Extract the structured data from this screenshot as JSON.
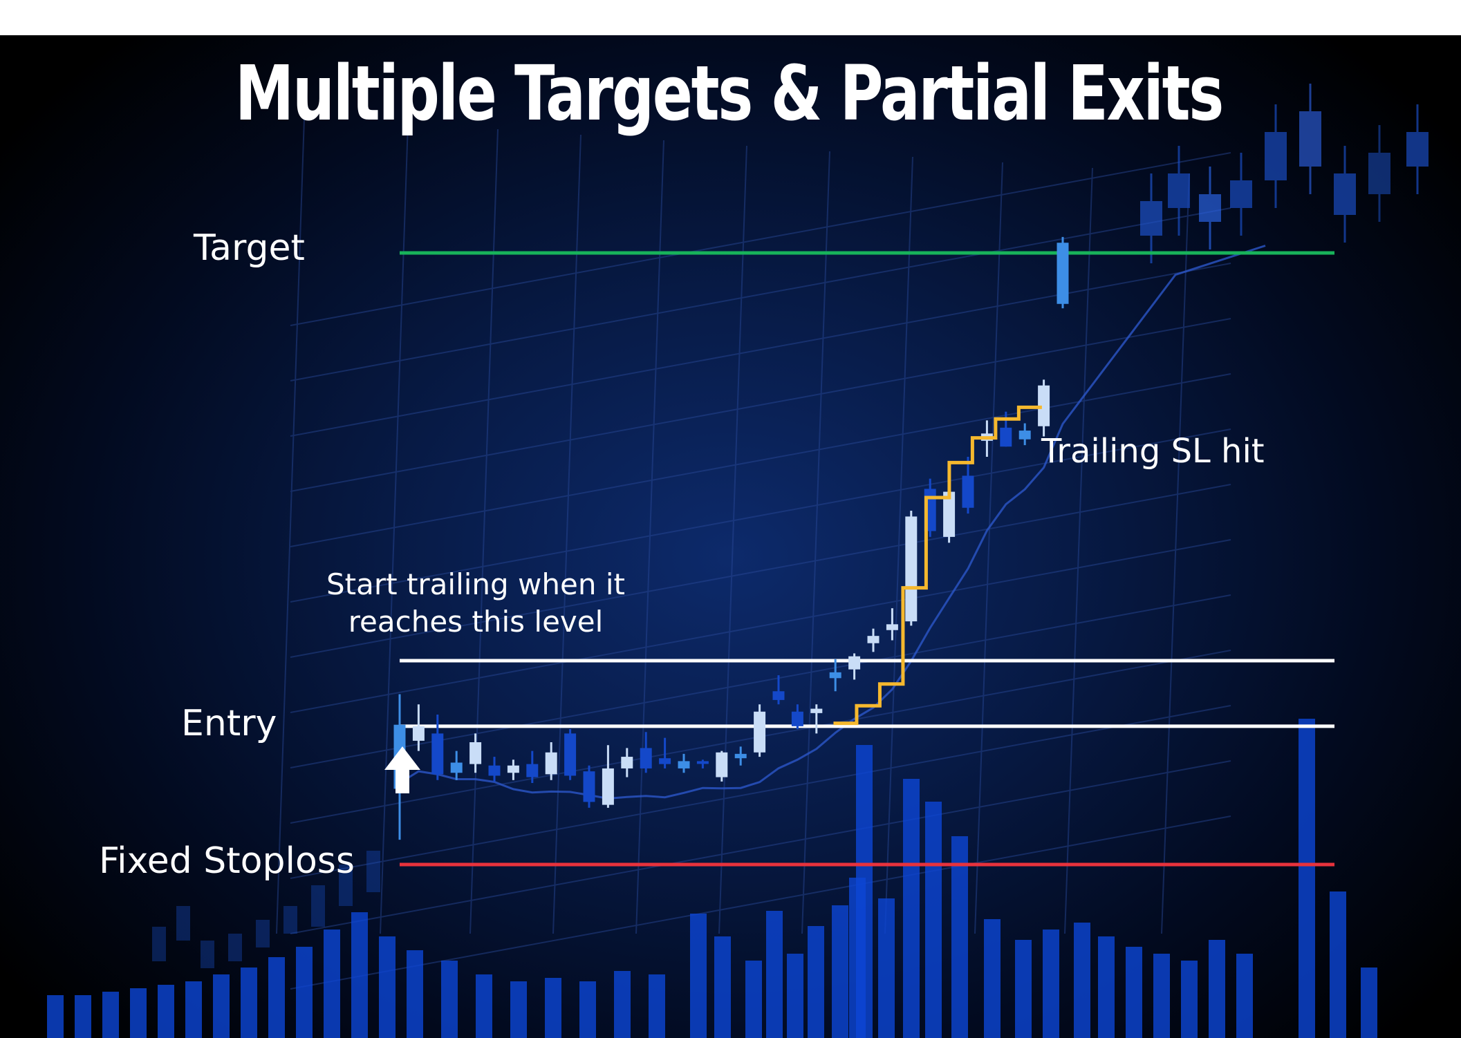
{
  "title": "Multiple Targets & Partial Exits",
  "labels": {
    "target": "Target",
    "entry": "Entry",
    "fixed_stoploss": "Fixed Stoploss",
    "trailing_hit": "Trailing SL hit",
    "start_trailing_line1": "Start trailing when it",
    "start_trailing_line2": "reaches this level"
  },
  "colors": {
    "target_line": "#18b35a",
    "stoploss_line": "#e8323c",
    "level_line": "#ffffff",
    "trailing_stop": "#f5b82e",
    "candle_light": "#c9ddf7",
    "candle_mid": "#3d8ee6",
    "candle_dark": "#1448c9",
    "volume": "#0d46d6"
  },
  "chart_data": {
    "type": "candlestick",
    "levels": [
      {
        "name": "Target",
        "price": 1000
      },
      {
        "name": "Trail start",
        "price": 720
      },
      {
        "name": "Entry",
        "price": 675
      },
      {
        "name": "Fixed Stoploss",
        "price": 580
      }
    ],
    "candles": [
      {
        "o": 632,
        "h": 697,
        "c": 676,
        "l": 597,
        "k": "mid"
      },
      {
        "o": 665,
        "h": 690,
        "c": 675,
        "l": 658,
        "k": "light"
      },
      {
        "o": 670,
        "h": 683,
        "c": 642,
        "l": 638,
        "k": "dark"
      },
      {
        "o": 650,
        "h": 658,
        "c": 643,
        "l": 638,
        "k": "mid"
      },
      {
        "o": 649,
        "h": 670,
        "c": 664,
        "l": 643,
        "k": "light"
      },
      {
        "o": 648,
        "h": 654,
        "c": 641,
        "l": 637,
        "k": "dark"
      },
      {
        "o": 643,
        "h": 652,
        "c": 648,
        "l": 638,
        "k": "light"
      },
      {
        "o": 649,
        "h": 658,
        "c": 640,
        "l": 636,
        "k": "dark"
      },
      {
        "o": 642,
        "h": 664,
        "c": 657,
        "l": 638,
        "k": "light"
      },
      {
        "o": 670,
        "h": 673,
        "c": 641,
        "l": 638,
        "k": "dark"
      },
      {
        "o": 644,
        "h": 648,
        "c": 623,
        "l": 619,
        "k": "dark"
      },
      {
        "o": 621,
        "h": 662,
        "c": 646,
        "l": 619,
        "k": "light"
      },
      {
        "o": 646,
        "h": 660,
        "c": 654,
        "l": 640,
        "k": "light"
      },
      {
        "o": 660,
        "h": 671,
        "c": 646,
        "l": 643,
        "k": "dark"
      },
      {
        "o": 649,
        "h": 667,
        "c": 653,
        "l": 646,
        "k": "dark"
      },
      {
        "o": 646,
        "h": 656,
        "c": 651,
        "l": 643,
        "k": "mid"
      },
      {
        "o": 650,
        "h": 652,
        "c": 651,
        "l": 646,
        "k": "dark"
      },
      {
        "o": 640,
        "h": 658,
        "c": 657,
        "l": 637,
        "k": "light"
      },
      {
        "o": 653,
        "h": 661,
        "c": 656,
        "l": 648,
        "k": "mid"
      },
      {
        "o": 657,
        "h": 690,
        "c": 685,
        "l": 654,
        "k": "light"
      },
      {
        "o": 693,
        "h": 710,
        "c": 699,
        "l": 690,
        "k": "dark"
      },
      {
        "o": 675,
        "h": 690,
        "c": 685,
        "l": 673,
        "k": "dark"
      },
      {
        "o": 684,
        "h": 690,
        "c": 687,
        "l": 670,
        "k": "light"
      },
      {
        "o": 708,
        "h": 721,
        "c": 712,
        "l": 699,
        "k": "mid"
      },
      {
        "o": 714,
        "h": 725,
        "c": 723,
        "l": 707,
        "k": "light"
      },
      {
        "o": 732,
        "h": 742,
        "c": 737,
        "l": 726,
        "k": "light"
      },
      {
        "o": 741,
        "h": 756,
        "c": 745,
        "l": 734,
        "k": "light"
      },
      {
        "o": 747,
        "h": 823,
        "c": 819,
        "l": 744,
        "k": "light"
      },
      {
        "o": 838,
        "h": 845,
        "c": 809,
        "l": 805,
        "k": "dark"
      },
      {
        "o": 805,
        "h": 842,
        "c": 836,
        "l": 801,
        "k": "light"
      },
      {
        "o": 825,
        "h": 860,
        "c": 847,
        "l": 821,
        "k": "dark"
      },
      {
        "o": 871,
        "h": 885,
        "c": 876,
        "l": 860,
        "k": "light"
      },
      {
        "o": 867,
        "h": 891,
        "c": 880,
        "l": 867,
        "k": "dark"
      },
      {
        "o": 872,
        "h": 883,
        "c": 878,
        "l": 868,
        "k": "mid"
      },
      {
        "o": 881,
        "h": 913,
        "c": 909,
        "l": 874,
        "k": "light"
      },
      {
        "o": 965,
        "h": 1011,
        "c": 1007,
        "l": 962,
        "k": "mid"
      }
    ],
    "trailing_stop": [
      677,
      677,
      689,
      689,
      704,
      704,
      770,
      770,
      832,
      832,
      856,
      856,
      873,
      873,
      886,
      886,
      894,
      894
    ],
    "trailing_start_candle": 23,
    "trailing_end_candle": 34
  }
}
